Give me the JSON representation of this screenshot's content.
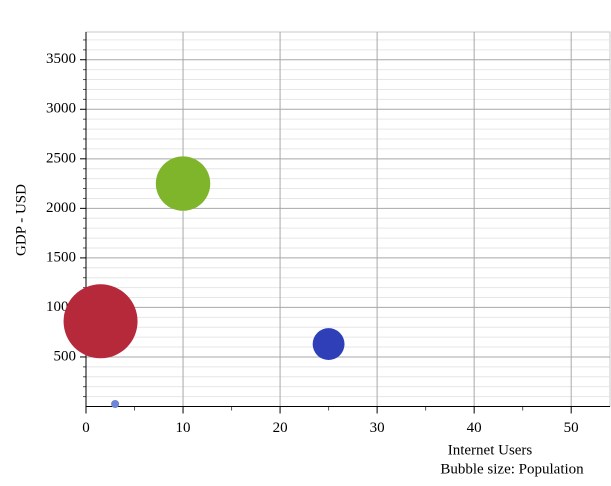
{
  "chart_data": {
    "type": "bubble",
    "x_label": "Internet Users",
    "y_label": "GDP - USD",
    "size_label": "Bubble size: Population",
    "series": [
      {
        "color": "#b5293b",
        "x": [
          1.5
        ],
        "values": [
          860
        ],
        "sizes": [
          1350
        ]
      },
      {
        "color": "#7fb52b",
        "x": [
          10
        ],
        "values": [
          2250
        ],
        "sizes": [
          730
        ]
      },
      {
        "color": "#2e3fb8",
        "x": [
          25
        ],
        "values": [
          630
        ],
        "sizes": [
          250
        ]
      },
      {
        "color": "#6d86d6",
        "x": [
          3
        ],
        "values": [
          25
        ],
        "sizes": [
          16
        ]
      }
    ],
    "xlim": [
      0,
      54
    ],
    "ylim": [
      0,
      3780
    ],
    "xticks": [
      0,
      10,
      20,
      30,
      40,
      50
    ],
    "yticks": [
      500,
      1000,
      1500,
      2000,
      2500,
      3000,
      3500
    ],
    "xminorticks": [
      5,
      15,
      25,
      35,
      45
    ],
    "yminorticks": [
      100,
      200,
      300,
      400,
      600,
      700,
      800,
      900,
      1100,
      1200,
      1300,
      1400,
      1600,
      1700,
      1800,
      1900,
      2100,
      2200,
      2300,
      2400,
      2600,
      2700,
      2800,
      2900,
      3100,
      3200,
      3300,
      3400,
      3600,
      3700
    ],
    "grid": true
  }
}
